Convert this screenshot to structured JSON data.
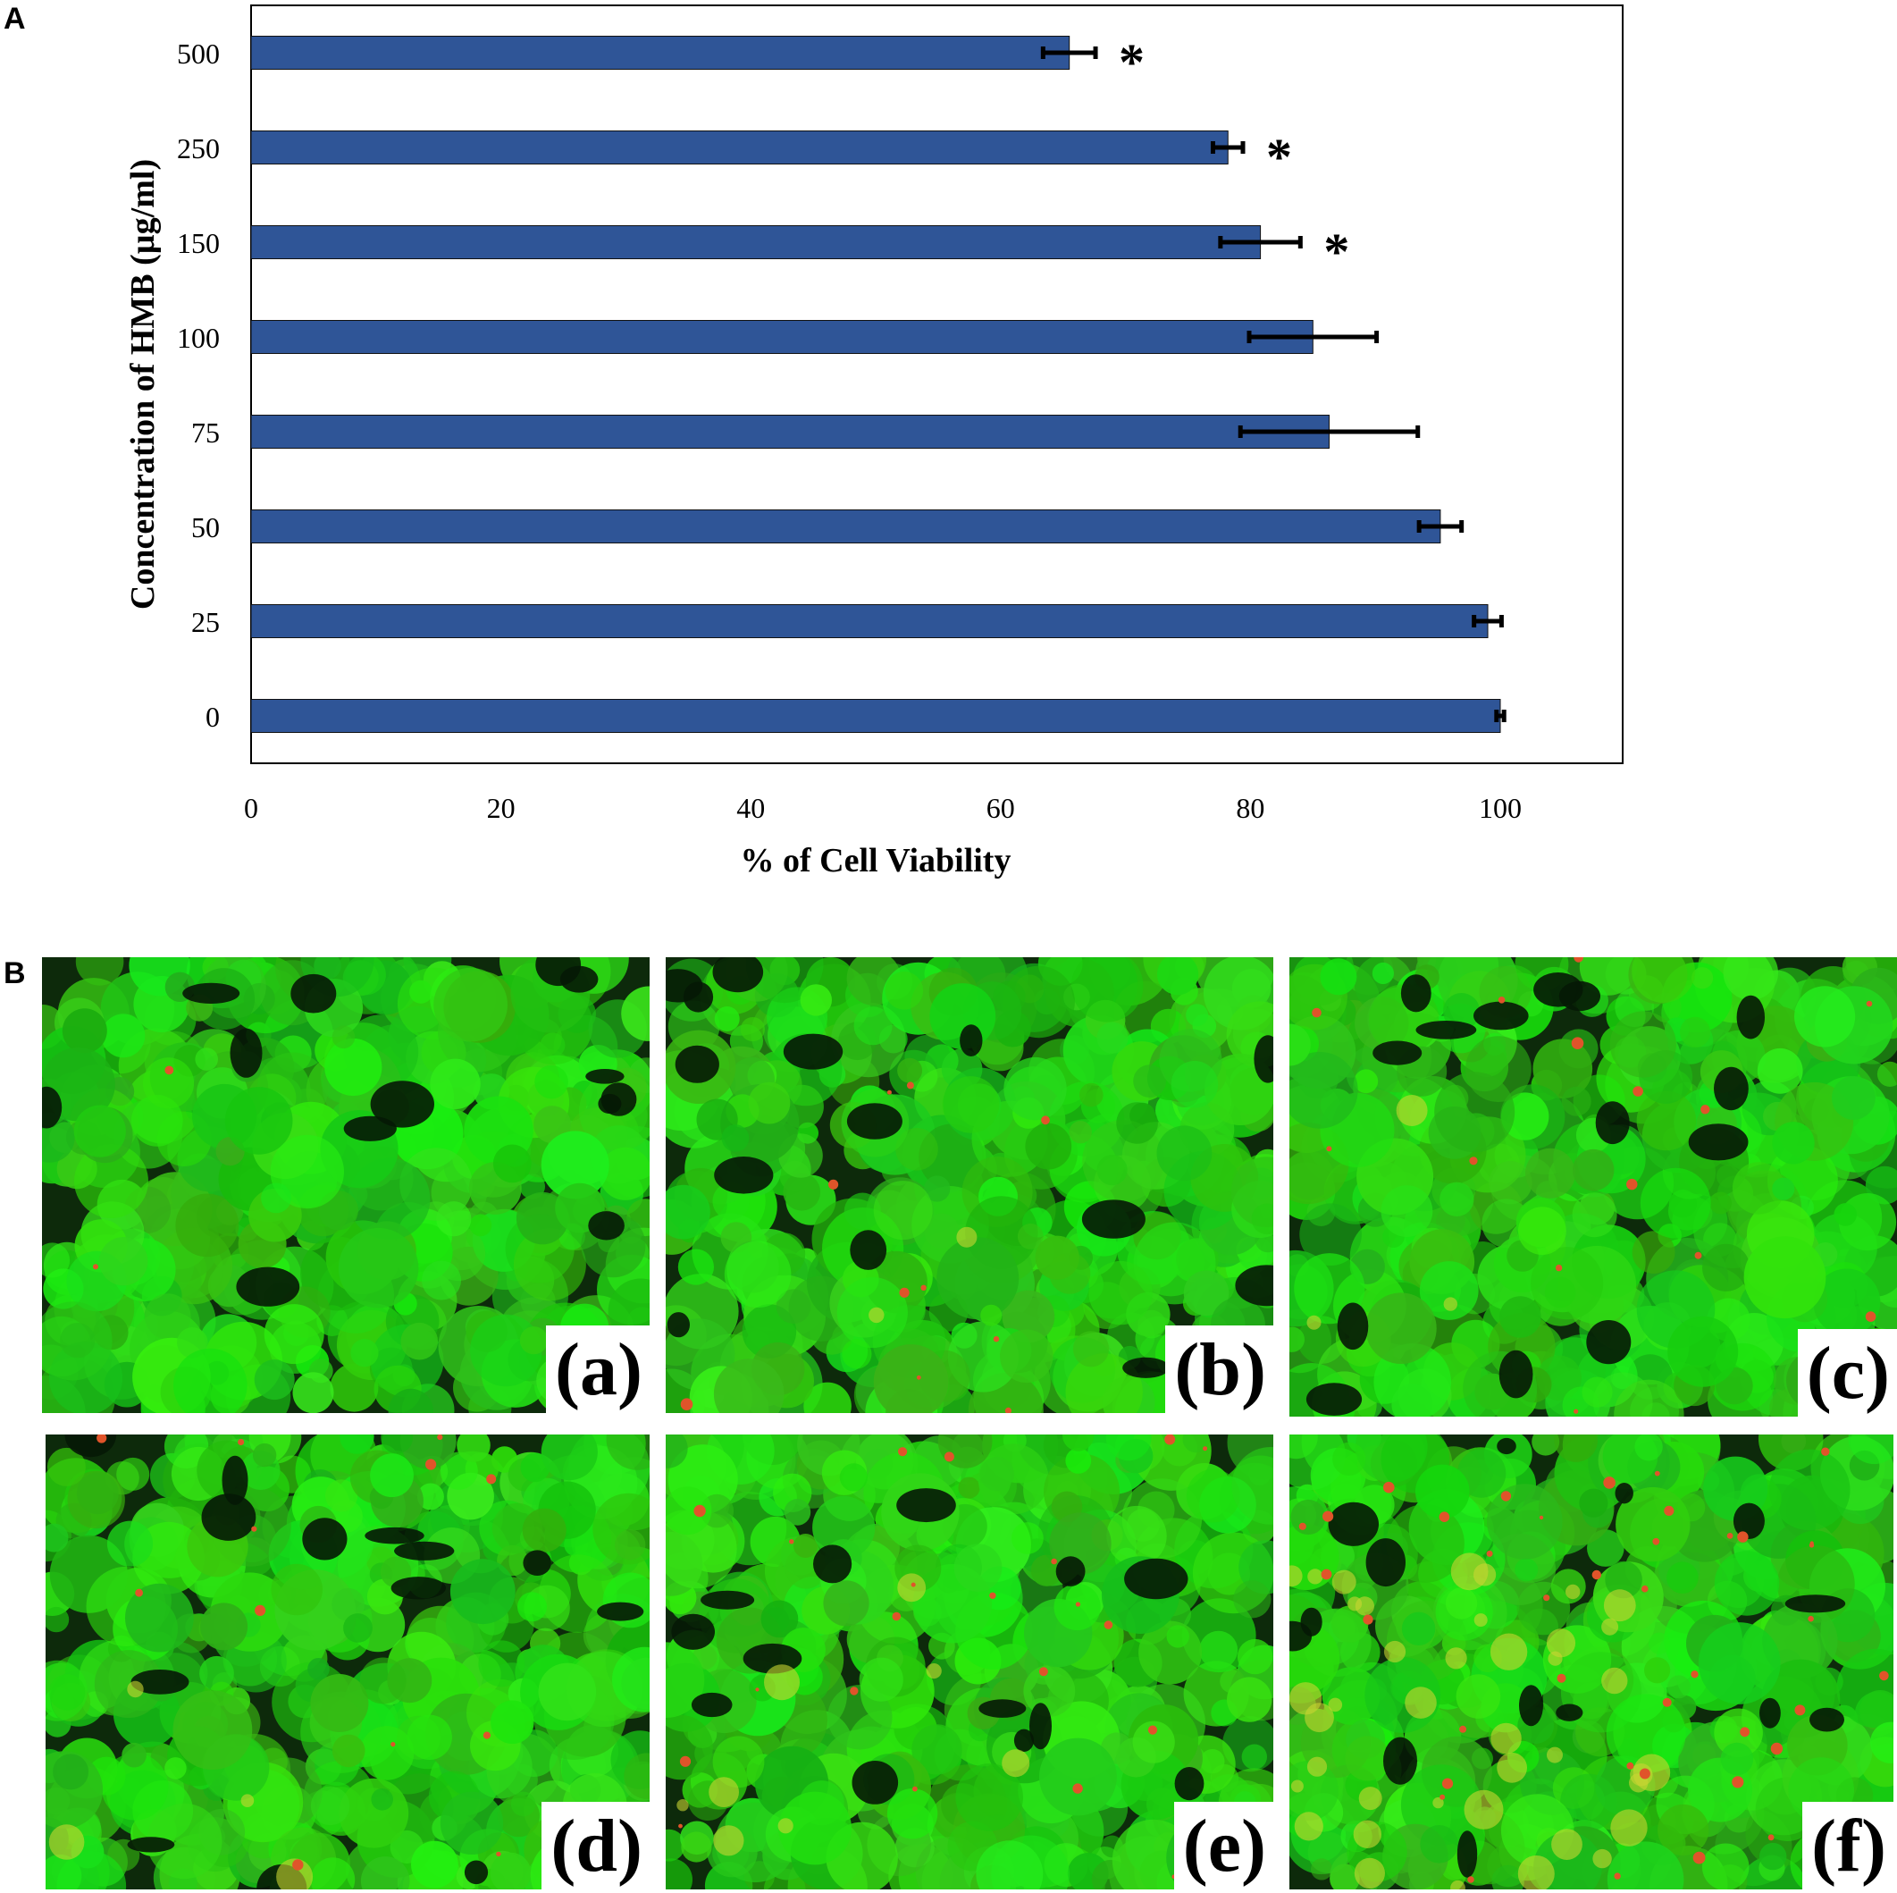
{
  "panels": {
    "a": "A",
    "b": "B"
  },
  "chart_data": {
    "type": "bar",
    "orientation": "horizontal",
    "categories": [
      "0",
      "25",
      "50",
      "75",
      "100",
      "150",
      "250",
      "500"
    ],
    "values": [
      100,
      99,
      95.2,
      86.3,
      85,
      80.8,
      78.2,
      65.5
    ],
    "errors": [
      0.3,
      1.1,
      1.7,
      7.1,
      5.1,
      3.2,
      1.2,
      2.1
    ],
    "significance": [
      "",
      "",
      "",
      "",
      "",
      "*",
      "*",
      "*"
    ],
    "xlabel": "% of Cell Viability",
    "ylabel": "Concentration of HMB (µg/ml)",
    "xlim": [
      0,
      110
    ],
    "xticks": [
      "0",
      "20",
      "40",
      "60",
      "80",
      "100"
    ],
    "bar_color": "#2f5597",
    "grid": false,
    "legend": "none"
  },
  "micrographs": [
    {
      "label": "(a)"
    },
    {
      "label": "(b)"
    },
    {
      "label": "(c)"
    },
    {
      "label": "(d)"
    },
    {
      "label": "(e)"
    },
    {
      "label": "(f)"
    }
  ]
}
